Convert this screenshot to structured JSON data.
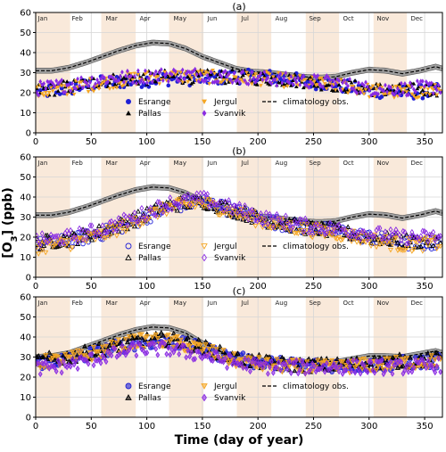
{
  "figure": {
    "ylabel": "[O3] (ppb)",
    "ylabel_main": "[O",
    "ylabel_sub": "3",
    "ylabel_tail": "] (ppb)",
    "xlabel": "Time (day of year)"
  },
  "colors": {
    "esrange": "#1f1fd6",
    "pallas": "#000000",
    "jergul": "#f5a623",
    "svanvik": "#8a2be2",
    "climatology": "#000000",
    "climatology_band": "#a0a0a0",
    "month_shade": "#f9e9da",
    "grid": "#d6d6d6"
  },
  "chart_data": [
    {
      "type": "scatter",
      "panel_label": "(a)",
      "x_range": [
        0,
        366
      ],
      "ylim": [
        0,
        60
      ],
      "xticks": [
        0,
        50,
        100,
        150,
        200,
        250,
        300,
        350
      ],
      "yticks": [
        0,
        10,
        20,
        30,
        40,
        50,
        60
      ],
      "months": [
        "Jan",
        "Feb",
        "Mar",
        "Apr",
        "May",
        "Jun",
        "Jul",
        "Aug",
        "Sep",
        "Oct",
        "Nov",
        "Dec"
      ],
      "shaded_day_ranges": [
        [
          0,
          31
        ],
        [
          59,
          90
        ],
        [
          120,
          151
        ],
        [
          181,
          212
        ],
        [
          243,
          273
        ],
        [
          304,
          334
        ]
      ],
      "grid": true,
      "legend": {
        "placement": "bottom-center",
        "entries": [
          {
            "label": "Esrange",
            "series": "esrange",
            "marker": "circle"
          },
          {
            "label": "Jergul",
            "series": "jergul",
            "marker": "triangle-down"
          },
          {
            "label": "climatology obs.",
            "series": "climatology",
            "marker": "dashed-line"
          },
          {
            "label": "Pallas",
            "series": "pallas",
            "marker": "triangle-up"
          },
          {
            "label": "Svanvik",
            "series": "svanvik",
            "marker": "diamond"
          }
        ]
      },
      "climatology": {
        "x": [
          0,
          15,
          30,
          45,
          60,
          75,
          90,
          105,
          120,
          135,
          150,
          165,
          180,
          195,
          210,
          225,
          240,
          255,
          270,
          285,
          300,
          315,
          330,
          345,
          360,
          366
        ],
        "y": [
          31,
          31,
          32.5,
          35,
          38,
          41,
          43.5,
          45,
          44.5,
          42,
          38,
          35,
          32,
          30.5,
          30,
          29,
          28,
          27.5,
          28,
          30,
          31.5,
          31,
          29.5,
          31,
          33,
          32
        ]
      },
      "series": [
        {
          "key": "esrange",
          "marker": "circle",
          "x": [
            0,
            30,
            60,
            90,
            120,
            150,
            180,
            210,
            240,
            270,
            300,
            330,
            365
          ],
          "y": [
            20,
            22,
            25,
            26,
            27,
            27,
            28,
            28,
            26,
            24,
            21,
            20,
            21
          ]
        },
        {
          "key": "pallas",
          "marker": "triangle-up",
          "x": [
            0,
            30,
            60,
            90,
            120,
            150,
            180,
            210,
            240,
            270,
            300,
            330,
            365
          ],
          "y": [
            21,
            23,
            26,
            27,
            28,
            28,
            28,
            27,
            26,
            24,
            22,
            21,
            22
          ]
        },
        {
          "key": "jergul",
          "marker": "triangle-down",
          "x": [
            0,
            30,
            60,
            90,
            120,
            150,
            180,
            210,
            240,
            270,
            300,
            330,
            365
          ],
          "y": [
            20,
            22,
            25,
            27,
            28,
            28,
            27,
            27,
            25,
            24,
            21,
            20,
            21
          ]
        },
        {
          "key": "svanvik",
          "marker": "diamond",
          "x": [
            0,
            30,
            60,
            90,
            120,
            150,
            180,
            210,
            240,
            270,
            300,
            330,
            365
          ],
          "y": [
            22,
            24,
            27,
            28,
            29,
            29,
            28,
            27,
            26,
            25,
            22,
            22,
            23
          ]
        }
      ]
    },
    {
      "type": "scatter",
      "panel_label": "(b)",
      "x_range": [
        0,
        366
      ],
      "ylim": [
        0,
        60
      ],
      "xticks": [
        0,
        50,
        100,
        150,
        200,
        250,
        300,
        350
      ],
      "yticks": [
        0,
        10,
        20,
        30,
        40,
        50,
        60
      ],
      "months": [
        "Jan",
        "Feb",
        "Mar",
        "Apr",
        "May",
        "Jun",
        "Jul",
        "Aug",
        "Sep",
        "Oct",
        "Nov",
        "Dec"
      ],
      "shaded_day_ranges": [
        [
          0,
          31
        ],
        [
          59,
          90
        ],
        [
          120,
          151
        ],
        [
          181,
          212
        ],
        [
          243,
          273
        ],
        [
          304,
          334
        ]
      ],
      "grid": true,
      "legend": {
        "placement": "bottom-center",
        "entries": [
          {
            "label": "Esrange",
            "series": "esrange",
            "marker": "circle-open"
          },
          {
            "label": "Jergul",
            "series": "jergul",
            "marker": "triangle-down-open"
          },
          {
            "label": "climatology obs.",
            "series": "climatology",
            "marker": "dashed-line"
          },
          {
            "label": "Pallas",
            "series": "pallas",
            "marker": "triangle-up-open"
          },
          {
            "label": "Svanvik",
            "series": "svanvik",
            "marker": "diamond-open"
          }
        ]
      },
      "climatology": {
        "x": [
          0,
          15,
          30,
          45,
          60,
          75,
          90,
          105,
          120,
          135,
          150,
          165,
          180,
          195,
          210,
          225,
          240,
          255,
          270,
          285,
          300,
          315,
          330,
          345,
          360,
          366
        ],
        "y": [
          31,
          31,
          32.5,
          35,
          38,
          41,
          43.5,
          45,
          44.5,
          42,
          38,
          35,
          32,
          30.5,
          30,
          29,
          28,
          27.5,
          28,
          30,
          31.5,
          31,
          29.5,
          31,
          33,
          32
        ]
      },
      "series": [
        {
          "key": "esrange",
          "marker": "circle-open",
          "x": [
            0,
            30,
            60,
            90,
            120,
            150,
            180,
            210,
            240,
            270,
            300,
            330,
            365
          ],
          "y": [
            16,
            18,
            22,
            28,
            35,
            38,
            33,
            28,
            25,
            23,
            20,
            17,
            17
          ]
        },
        {
          "key": "pallas",
          "marker": "triangle-up-open",
          "x": [
            0,
            30,
            60,
            90,
            120,
            150,
            180,
            210,
            240,
            270,
            300,
            330,
            365
          ],
          "y": [
            17,
            19,
            23,
            29,
            36,
            38,
            33,
            28,
            25,
            23,
            20,
            18,
            18
          ]
        },
        {
          "key": "jergul",
          "marker": "triangle-down-open",
          "x": [
            0,
            30,
            60,
            90,
            120,
            150,
            180,
            210,
            240,
            270,
            300,
            330,
            365
          ],
          "y": [
            15,
            17,
            21,
            28,
            35,
            37,
            32,
            27,
            24,
            22,
            19,
            16,
            17
          ]
        },
        {
          "key": "svanvik",
          "marker": "diamond-open",
          "x": [
            0,
            30,
            60,
            90,
            120,
            150,
            180,
            210,
            240,
            270,
            300,
            330,
            365
          ],
          "y": [
            18,
            20,
            24,
            30,
            37,
            39,
            34,
            29,
            26,
            24,
            22,
            20,
            20
          ]
        }
      ]
    },
    {
      "type": "scatter",
      "panel_label": "(c)",
      "x_range": [
        0,
        366
      ],
      "ylim": [
        0,
        60
      ],
      "xticks": [
        0,
        50,
        100,
        150,
        200,
        250,
        300,
        350
      ],
      "yticks": [
        0,
        10,
        20,
        30,
        40,
        50,
        60
      ],
      "months": [
        "Jan",
        "Feb",
        "Mar",
        "Apr",
        "May",
        "Jun",
        "Jul",
        "Aug",
        "Sep",
        "Oct",
        "Nov",
        "Dec"
      ],
      "shaded_day_ranges": [
        [
          0,
          31
        ],
        [
          59,
          90
        ],
        [
          120,
          151
        ],
        [
          181,
          212
        ],
        [
          243,
          273
        ],
        [
          304,
          334
        ]
      ],
      "grid": true,
      "legend": {
        "placement": "bottom-center",
        "entries": [
          {
            "label": "Esrange",
            "series": "esrange",
            "marker": "circle-half"
          },
          {
            "label": "Jergul",
            "series": "jergul",
            "marker": "triangle-down-half"
          },
          {
            "label": "climatology obs.",
            "series": "climatology",
            "marker": "dashed-line"
          },
          {
            "label": "Pallas",
            "series": "pallas",
            "marker": "triangle-up-half"
          },
          {
            "label": "Svanvik",
            "series": "svanvik",
            "marker": "diamond-half"
          }
        ]
      },
      "climatology": {
        "x": [
          0,
          15,
          30,
          45,
          60,
          75,
          90,
          105,
          120,
          135,
          150,
          165,
          180,
          195,
          210,
          225,
          240,
          255,
          270,
          285,
          300,
          315,
          330,
          345,
          360,
          366
        ],
        "y": [
          30,
          30.5,
          32,
          35,
          38,
          41,
          43.5,
          45,
          44.5,
          42,
          37,
          33,
          30,
          28.5,
          28,
          27.5,
          27,
          27,
          27.5,
          29,
          30.5,
          30.5,
          30,
          31.5,
          33,
          32
        ]
      },
      "series": [
        {
          "key": "esrange",
          "marker": "circle-half",
          "x": [
            0,
            30,
            60,
            90,
            120,
            150,
            180,
            210,
            240,
            270,
            300,
            330,
            365
          ],
          "y": [
            27,
            29,
            33,
            37,
            38,
            34,
            29,
            27,
            26,
            26,
            26,
            27,
            28
          ]
        },
        {
          "key": "pallas",
          "marker": "triangle-up-half",
          "x": [
            0,
            30,
            60,
            90,
            120,
            150,
            180,
            210,
            240,
            270,
            300,
            330,
            365
          ],
          "y": [
            28,
            30,
            34,
            38,
            39,
            35,
            29,
            27,
            26,
            26,
            27,
            28,
            29
          ]
        },
        {
          "key": "jergul",
          "marker": "triangle-down-half",
          "x": [
            0,
            30,
            60,
            90,
            120,
            150,
            180,
            210,
            240,
            270,
            300,
            330,
            365
          ],
          "y": [
            27,
            29,
            33,
            38,
            38,
            34,
            28,
            26,
            25,
            25,
            26,
            27,
            28
          ]
        },
        {
          "key": "svanvik",
          "marker": "diamond-half",
          "x": [
            0,
            30,
            60,
            90,
            120,
            150,
            180,
            210,
            240,
            270,
            300,
            330,
            365
          ],
          "y": [
            24,
            26,
            30,
            34,
            34,
            31,
            27,
            25,
            25,
            25,
            25,
            25,
            26
          ]
        }
      ]
    }
  ]
}
